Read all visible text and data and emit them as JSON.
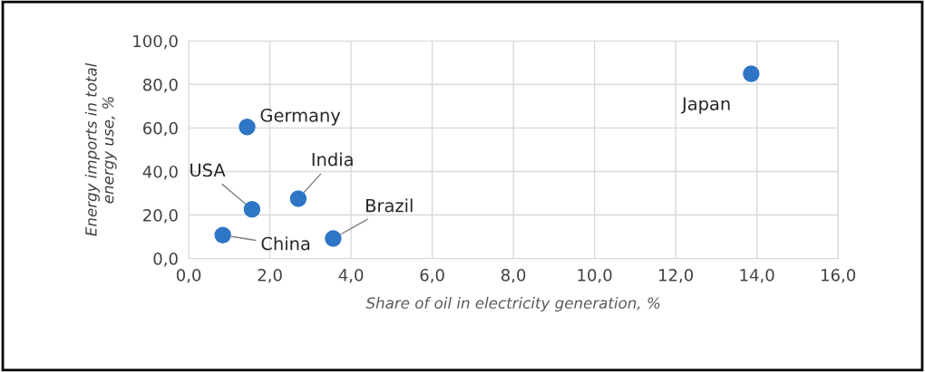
{
  "chart_data": {
    "type": "scatter",
    "xlabel": "Share of oil in electricity generation, %",
    "ylabel": "Energy imports in total\nenergy use, %",
    "x": [
      1.44,
      1.56,
      2.7,
      0.84,
      3.56,
      13.86
    ],
    "values": [
      60.5,
      22.6,
      27.5,
      10.8,
      9.2,
      84.9
    ],
    "color": "#2e75c6",
    "marker": "circle",
    "grid": true,
    "xlim": [
      0,
      16
    ],
    "ylim": [
      0,
      100
    ],
    "xticks": [
      {
        "value": 0,
        "label": "0,0"
      },
      {
        "value": 2,
        "label": "2,0"
      },
      {
        "value": 4,
        "label": "4,0"
      },
      {
        "value": 6,
        "label": "6,0"
      },
      {
        "value": 8,
        "label": "8,0"
      },
      {
        "value": 10,
        "label": "10,0"
      },
      {
        "value": 12,
        "label": "12,0"
      },
      {
        "value": 14,
        "label": "14,0"
      },
      {
        "value": 16,
        "label": "16,0"
      }
    ],
    "yticks": [
      {
        "value": 0,
        "label": "0,0"
      },
      {
        "value": 20,
        "label": "20,0"
      },
      {
        "value": 40,
        "label": "40,0"
      },
      {
        "value": 60,
        "label": "60,0"
      },
      {
        "value": 80,
        "label": "80,0"
      },
      {
        "value": 100,
        "label": "100,0"
      }
    ],
    "annotations": [
      {
        "text": "Germany",
        "x": 1.44,
        "y": 60.5
      },
      {
        "text": "USA",
        "x": 1.56,
        "y": 22.6
      },
      {
        "text": "India",
        "x": 2.7,
        "y": 27.5
      },
      {
        "text": "China",
        "x": 0.84,
        "y": 10.8
      },
      {
        "text": "Brazil",
        "x": 3.56,
        "y": 9.2
      },
      {
        "text": "Japan",
        "x": 13.86,
        "y": 84.9
      }
    ]
  }
}
